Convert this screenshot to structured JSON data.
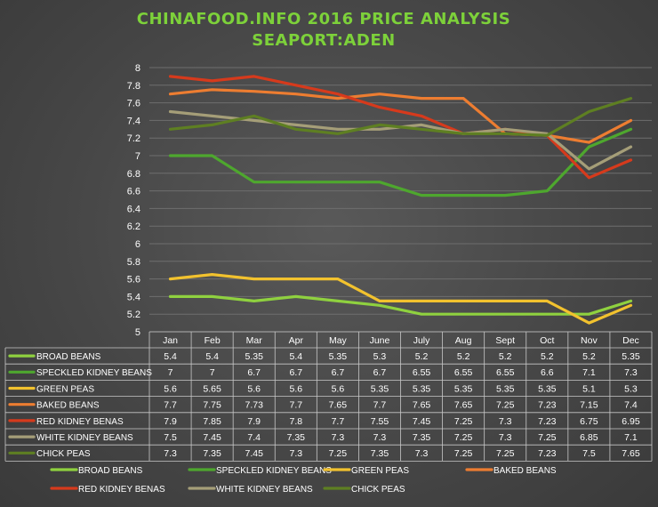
{
  "chart_data": {
    "type": "line",
    "title": "CHINAFOOD.INFO  2016  PRICE ANALYSIS",
    "subtitle": "SEAPORT:ADEN",
    "categories": [
      "Jan",
      "Feb",
      "Mar",
      "Apr",
      "May",
      "June",
      "July",
      "Aug",
      "Sept",
      "Oct",
      "Nov",
      "Dec"
    ],
    "ylim": [
      5,
      8
    ],
    "yticks": [
      "5",
      "5.2",
      "5.4",
      "5.6",
      "5.8",
      "6",
      "6.2",
      "6.4",
      "6.6",
      "6.8",
      "7",
      "7.2",
      "7.4",
      "7.6",
      "7.8",
      "8"
    ],
    "grid": true,
    "legend_position": "bottom",
    "series": [
      {
        "name": "BROAD BEANS",
        "color": "#8fd13f",
        "values": [
          5.4,
          5.4,
          5.35,
          5.4,
          5.35,
          5.3,
          5.2,
          5.2,
          5.2,
          5.2,
          5.2,
          5.35
        ],
        "labels": [
          "5.4",
          "5.4",
          "5.35",
          "5.4",
          "5.35",
          "5.3",
          "5.2",
          "5.2",
          "5.2",
          "5.2",
          "5.2",
          "5.35"
        ]
      },
      {
        "name": "SPECKLED KIDNEY BEANS",
        "color": "#4ea72e",
        "values": [
          7,
          7,
          6.7,
          6.7,
          6.7,
          6.7,
          6.55,
          6.55,
          6.55,
          6.6,
          7.1,
          7.3
        ],
        "labels": [
          "7",
          "7",
          "6.7",
          "6.7",
          "6.7",
          "6.7",
          "6.55",
          "6.55",
          "6.55",
          "6.6",
          "7.1",
          "7.3"
        ]
      },
      {
        "name": "GREEN PEAS",
        "color": "#f2c22e",
        "values": [
          5.6,
          5.65,
          5.6,
          5.6,
          5.6,
          5.35,
          5.35,
          5.35,
          5.35,
          5.35,
          5.1,
          5.3
        ],
        "labels": [
          "5.6",
          "5.65",
          "5.6",
          "5.6",
          "5.6",
          "5.35",
          "5.35",
          "5.35",
          "5.35",
          "5.35",
          "5.1",
          "5.3"
        ]
      },
      {
        "name": "BAKED BEANS",
        "color": "#ed7d31",
        "values": [
          7.7,
          7.75,
          7.73,
          7.7,
          7.65,
          7.7,
          7.65,
          7.65,
          7.25,
          7.23,
          7.15,
          7.4
        ],
        "labels": [
          "7.7",
          "7.75",
          "7.73",
          "7.7",
          "7.65",
          "7.7",
          "7.65",
          "7.65",
          "7.25",
          "7.23",
          "7.15",
          "7.4"
        ]
      },
      {
        "name": "RED KIDNEY BENAS",
        "color": "#d63a1c",
        "values": [
          7.9,
          7.85,
          7.9,
          7.8,
          7.7,
          7.55,
          7.45,
          7.25,
          7.3,
          7.23,
          6.75,
          6.95
        ],
        "labels": [
          "7.9",
          "7.85",
          "7.9",
          "7.8",
          "7.7",
          "7.55",
          "7.45",
          "7.25",
          "7.3",
          "7.23",
          "6.75",
          "6.95"
        ]
      },
      {
        "name": "WHITE KIDNEY BEANS",
        "color": "#a59e78",
        "values": [
          7.5,
          7.45,
          7.4,
          7.35,
          7.3,
          7.3,
          7.35,
          7.25,
          7.3,
          7.25,
          6.85,
          7.1
        ],
        "labels": [
          "7.5",
          "7.45",
          "7.4",
          "7.35",
          "7.3",
          "7.3",
          "7.35",
          "7.25",
          "7.3",
          "7.25",
          "6.85",
          "7.1"
        ]
      },
      {
        "name": "CHICK PEAS",
        "color": "#5e7f22",
        "values": [
          7.3,
          7.35,
          7.45,
          7.3,
          7.25,
          7.35,
          7.3,
          7.25,
          7.25,
          7.23,
          7.5,
          7.65
        ],
        "labels": [
          "7.3",
          "7.35",
          "7.45",
          "7.3",
          "7.25",
          "7.35",
          "7.3",
          "7.25",
          "7.25",
          "7.23",
          "7.5",
          "7.65"
        ]
      }
    ]
  }
}
